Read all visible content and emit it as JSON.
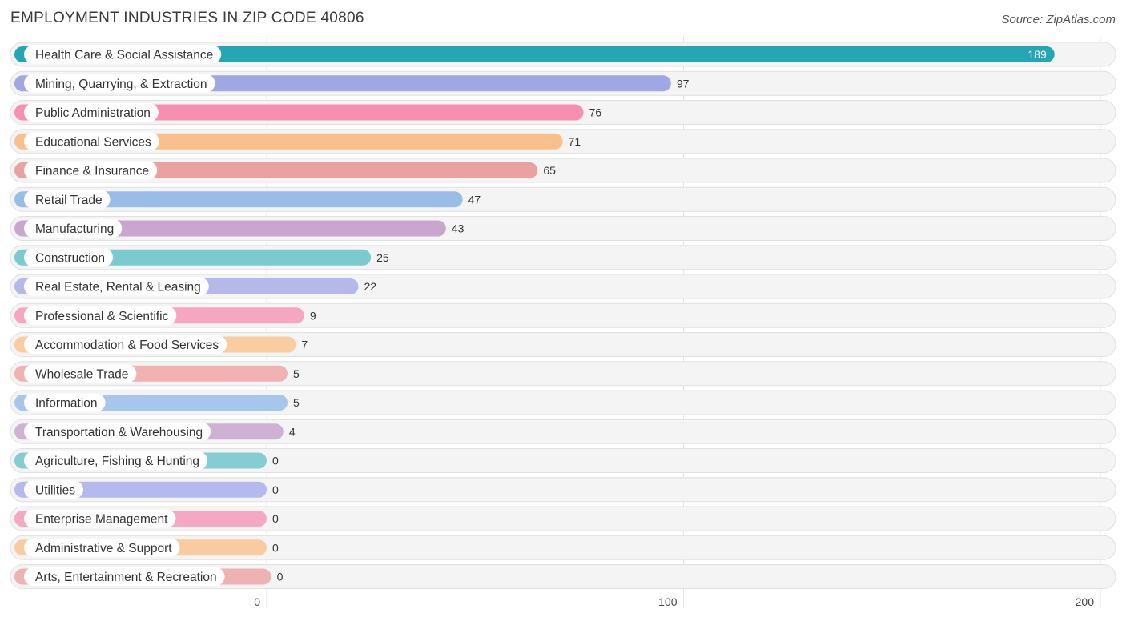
{
  "header": {
    "title": "EMPLOYMENT INDUSTRIES IN ZIP CODE 40806",
    "source": "Source: ZipAtlas.com"
  },
  "chart_data": {
    "type": "bar",
    "orientation": "horizontal",
    "title": "EMPLOYMENT INDUSTRIES IN ZIP CODE 40806",
    "xlabel": "",
    "ylabel": "",
    "xlim": [
      0,
      200
    ],
    "ticks": [
      0,
      100,
      200
    ],
    "grid": true,
    "categories": [
      "Health Care & Social Assistance",
      "Mining, Quarrying, & Extraction",
      "Public Administration",
      "Educational Services",
      "Finance & Insurance",
      "Retail Trade",
      "Manufacturing",
      "Construction",
      "Real Estate, Rental & Leasing",
      "Professional & Scientific",
      "Accommodation & Food Services",
      "Wholesale Trade",
      "Information",
      "Transportation & Warehousing",
      "Agriculture, Fishing & Hunting",
      "Utilities",
      "Enterprise Management",
      "Administrative & Support",
      "Arts, Entertainment & Recreation"
    ],
    "values": [
      189,
      97,
      76,
      71,
      65,
      47,
      43,
      25,
      22,
      9,
      7,
      5,
      5,
      4,
      0,
      0,
      0,
      0,
      0
    ],
    "colors": [
      "#26a6b4",
      "#a0a8e4",
      "#f590b0",
      "#f9c08e",
      "#eba19f",
      "#98bee8",
      "#c9a6cd",
      "#7ccad1",
      "#b4b9ea",
      "#f6a6c0",
      "#f9cca2",
      "#f1b2b2",
      "#a6c7eb",
      "#cfb1d5",
      "#86ccd3",
      "#b4baee",
      "#f5a8c3",
      "#f9cba0",
      "#efb2b2"
    ]
  }
}
